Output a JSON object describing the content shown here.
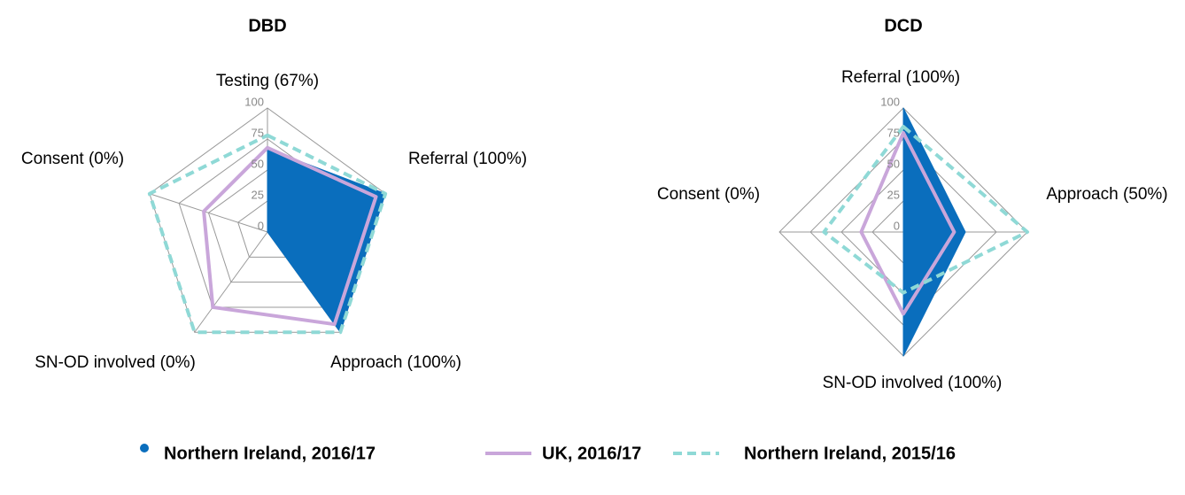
{
  "chart_data": [
    {
      "type": "radar",
      "title": "DBD",
      "categories": [
        "Testing (67%)",
        "Referral (100%)",
        "Approach (100%)",
        "SN-OD involved (0%)",
        "Consent (0%)"
      ],
      "ylim": [
        0,
        100
      ],
      "yticks": [
        0,
        25,
        50,
        75,
        100
      ],
      "grid": true,
      "series": [
        {
          "name": "Northern Ireland, 2016/17",
          "color": "#0a6ebd",
          "fill": true,
          "values": [
            67,
            100,
            100,
            0,
            0
          ]
        },
        {
          "name": "UK, 2016/17",
          "color": "#c9a6da",
          "values": [
            68,
            92,
            92,
            75,
            54
          ]
        },
        {
          "name": "Northern Ireland, 2015/16",
          "color": "#8fd9d6",
          "dashed": true,
          "values": [
            78,
            100,
            100,
            100,
            100
          ]
        }
      ]
    },
    {
      "type": "radar",
      "title": "DCD",
      "categories": [
        "Referral (100%)",
        "Approach (50%)",
        "SN-OD involved (100%)",
        "Consent (0%)"
      ],
      "ylim": [
        0,
        100
      ],
      "yticks": [
        0,
        25,
        50,
        75,
        100
      ],
      "grid": true,
      "series": [
        {
          "color": "#0a6ebd",
          "fill": true,
          "values": [
            100,
            50,
            100,
            0
          ]
        },
        {
          "color": "#c9a6da",
          "values": [
            80,
            41,
            66,
            34
          ]
        },
        {
          "color": "#8fd9d6",
          "dashed": true,
          "values": [
            85,
            100,
            49,
            64
          ]
        }
      ]
    }
  ]
}
